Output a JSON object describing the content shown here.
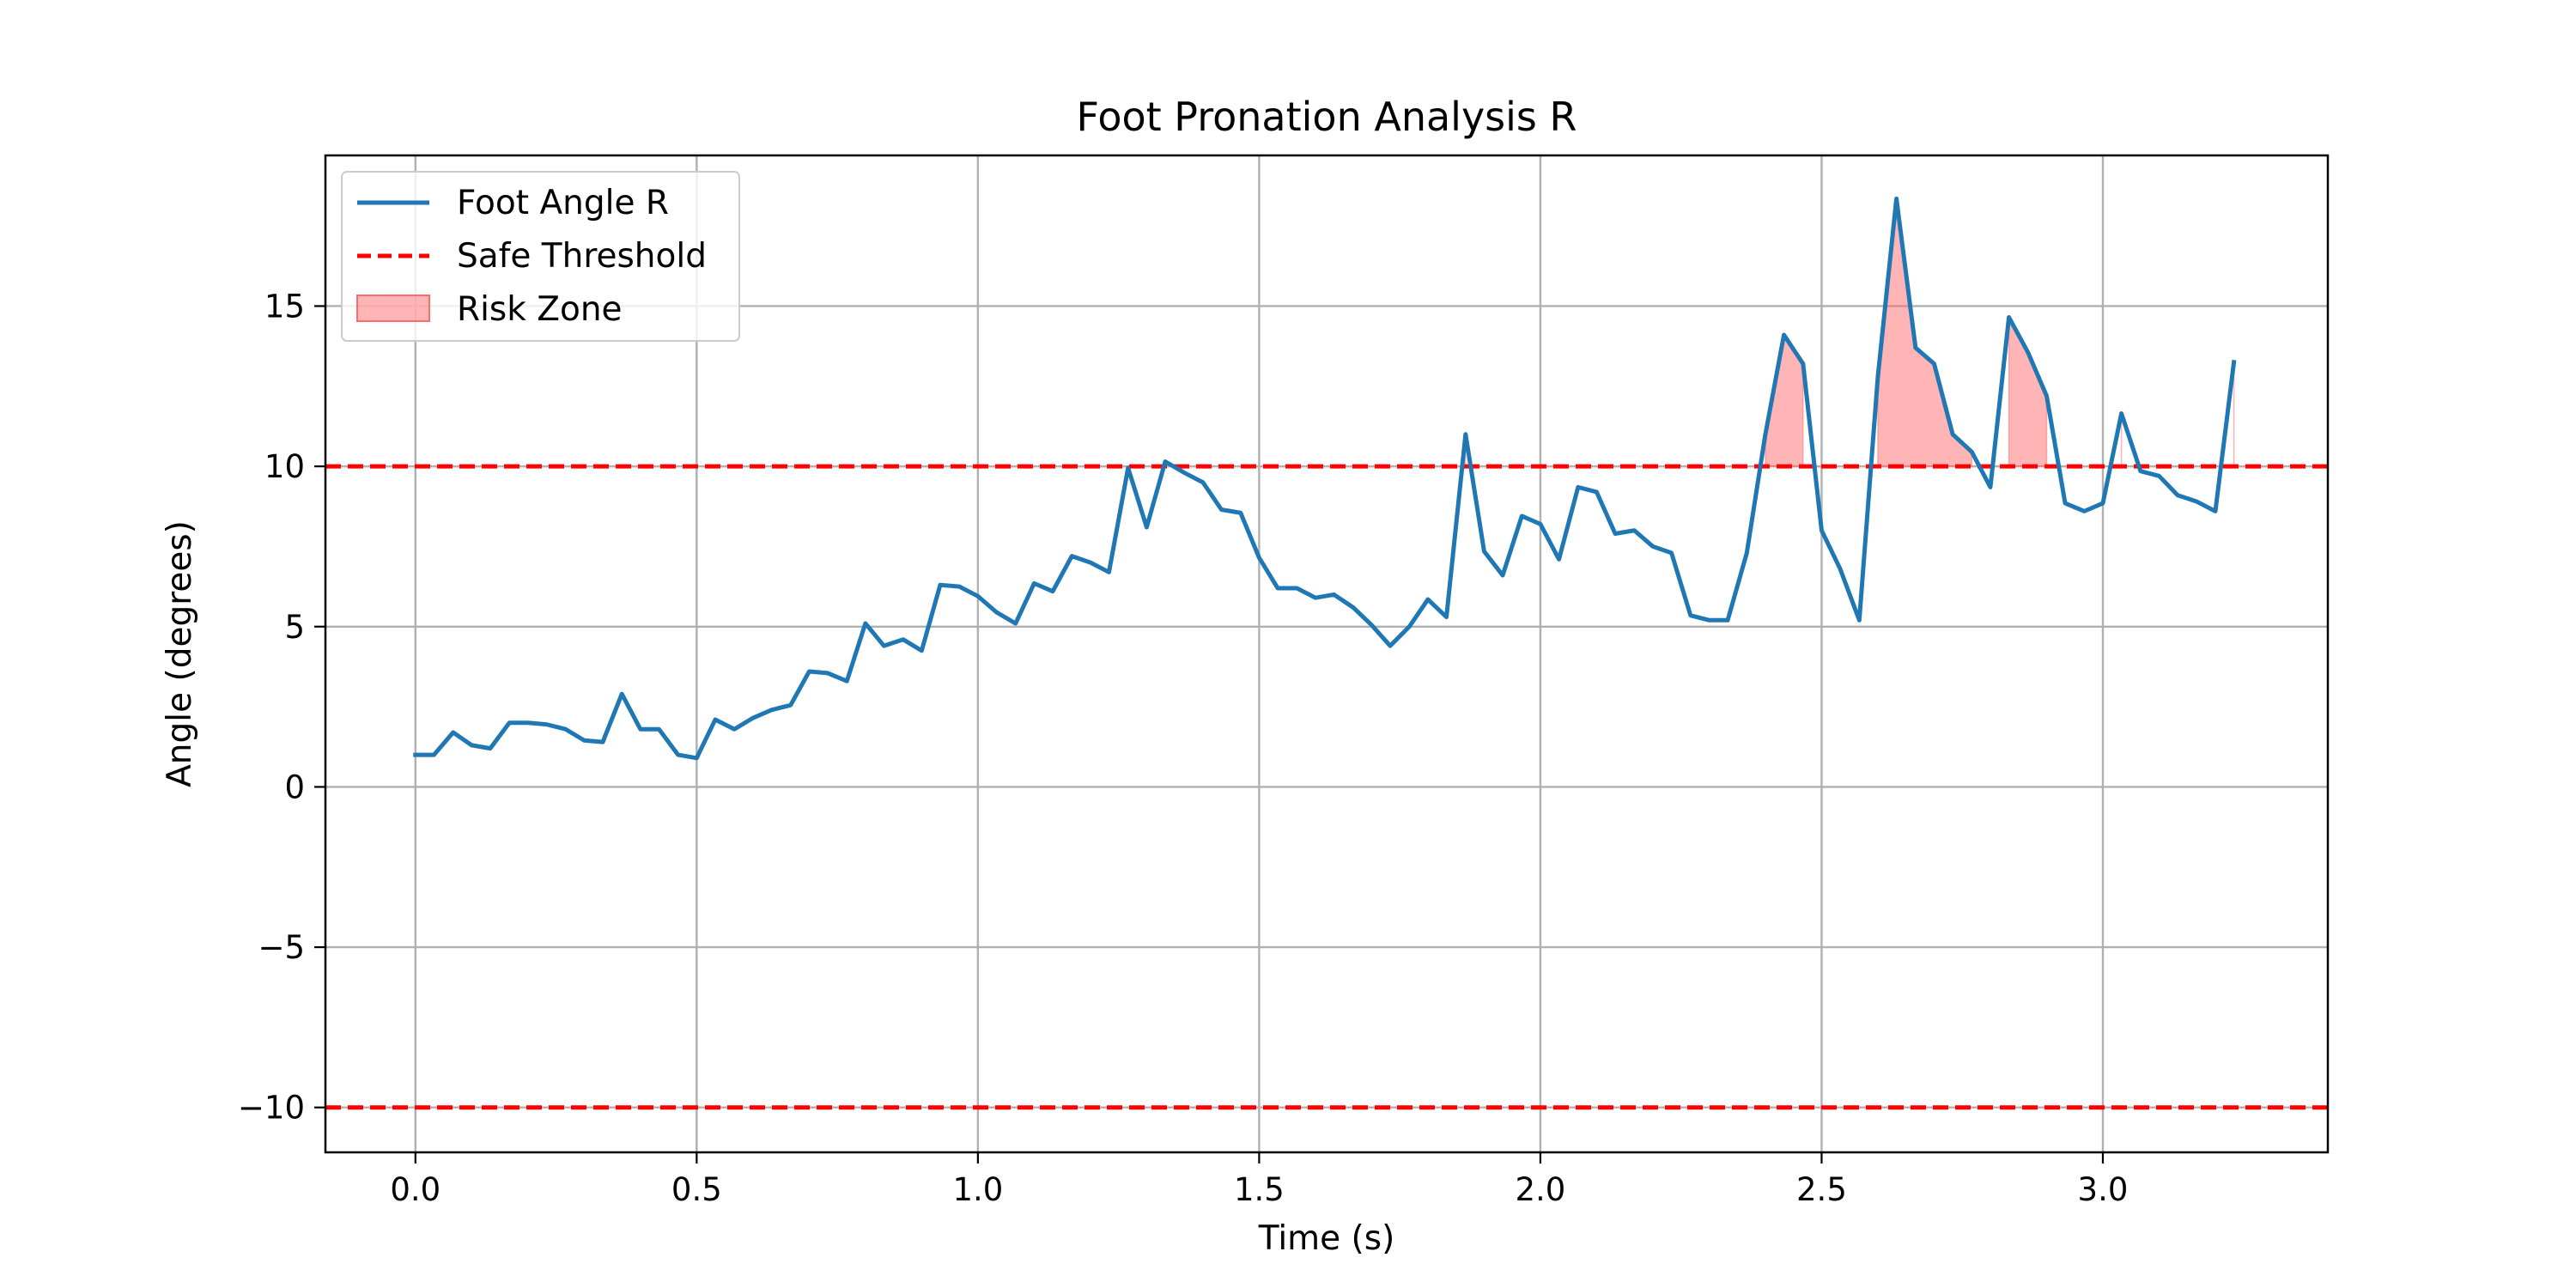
{
  "chart_data": {
    "type": "line",
    "title": "Foot Pronation Analysis R",
    "xlabel": "Time (s)",
    "ylabel": "Angle (degrees)",
    "xlim": [
      -0.16,
      3.4
    ],
    "ylim": [
      -11.4,
      19.7
    ],
    "xticks": [
      0.0,
      0.5,
      1.0,
      1.5,
      2.0,
      2.5,
      3.0
    ],
    "xtick_labels": [
      "0.0",
      "0.5",
      "1.0",
      "1.5",
      "2.0",
      "2.5",
      "3.0"
    ],
    "yticks": [
      -10,
      -5,
      0,
      5,
      10,
      15
    ],
    "ytick_labels": [
      "−10",
      "−5",
      "0",
      "5",
      "10",
      "15"
    ],
    "grid": true,
    "legend_position": "top-left",
    "series": [
      {
        "name": "Foot Angle R",
        "color": "#1f77b4",
        "x": [
          0.0,
          0.033,
          0.067,
          0.1,
          0.133,
          0.167,
          0.2,
          0.233,
          0.267,
          0.3,
          0.333,
          0.367,
          0.4,
          0.433,
          0.467,
          0.5,
          0.533,
          0.567,
          0.6,
          0.633,
          0.667,
          0.7,
          0.733,
          0.767,
          0.8,
          0.833,
          0.867,
          0.9,
          0.933,
          0.967,
          1.0,
          1.033,
          1.067,
          1.1,
          1.133,
          1.167,
          1.2,
          1.233,
          1.267,
          1.3,
          1.333,
          1.367,
          1.4,
          1.433,
          1.467,
          1.5,
          1.533,
          1.567,
          1.6,
          1.633,
          1.667,
          1.7,
          1.733,
          1.767,
          1.8,
          1.833,
          1.867,
          1.9,
          1.933,
          1.967,
          2.0,
          2.033,
          2.067,
          2.1,
          2.133,
          2.167,
          2.2,
          2.233,
          2.267,
          2.3,
          2.333,
          2.367,
          2.4,
          2.433,
          2.467,
          2.5,
          2.533,
          2.567,
          2.6,
          2.633,
          2.667,
          2.7,
          2.733,
          2.767,
          2.8,
          2.833,
          2.867,
          2.9,
          2.933,
          2.967,
          3.0,
          3.033,
          3.067,
          3.1,
          3.133,
          3.167,
          3.2,
          3.233
        ],
        "values": [
          1.0,
          1.0,
          1.7,
          1.3,
          1.2,
          2.0,
          2.0,
          1.95,
          1.8,
          1.45,
          1.4,
          2.9,
          1.8,
          1.8,
          1.0,
          0.9,
          2.1,
          1.8,
          2.15,
          2.4,
          2.55,
          3.6,
          3.55,
          3.3,
          5.1,
          4.4,
          4.6,
          4.25,
          6.3,
          6.25,
          5.95,
          5.45,
          5.1,
          6.35,
          6.1,
          7.2,
          7.0,
          6.7,
          9.95,
          8.1,
          10.15,
          9.8,
          9.5,
          8.65,
          8.55,
          7.15,
          6.2,
          6.2,
          5.9,
          6.0,
          5.6,
          5.05,
          4.4,
          5.0,
          5.85,
          5.3,
          11.0,
          7.35,
          6.6,
          8.45,
          8.2,
          7.1,
          9.35,
          9.2,
          7.9,
          8.0,
          7.5,
          7.3,
          5.35,
          5.2,
          5.2,
          7.3,
          11.0,
          14.1,
          13.2,
          8.0,
          6.8,
          5.2,
          12.8,
          18.35,
          13.7,
          13.2,
          11.0,
          10.45,
          9.35,
          14.65,
          13.55,
          12.2,
          8.85,
          8.6,
          8.85,
          11.65,
          9.85,
          9.7,
          9.1,
          8.9,
          8.6,
          13.25
        ]
      },
      {
        "name": "Safe Threshold",
        "color": "#ff0000",
        "values": [
          10,
          -10
        ]
      }
    ],
    "fill": {
      "name": "Risk Zone",
      "color": "#ff6b6b",
      "threshold": 10
    }
  }
}
